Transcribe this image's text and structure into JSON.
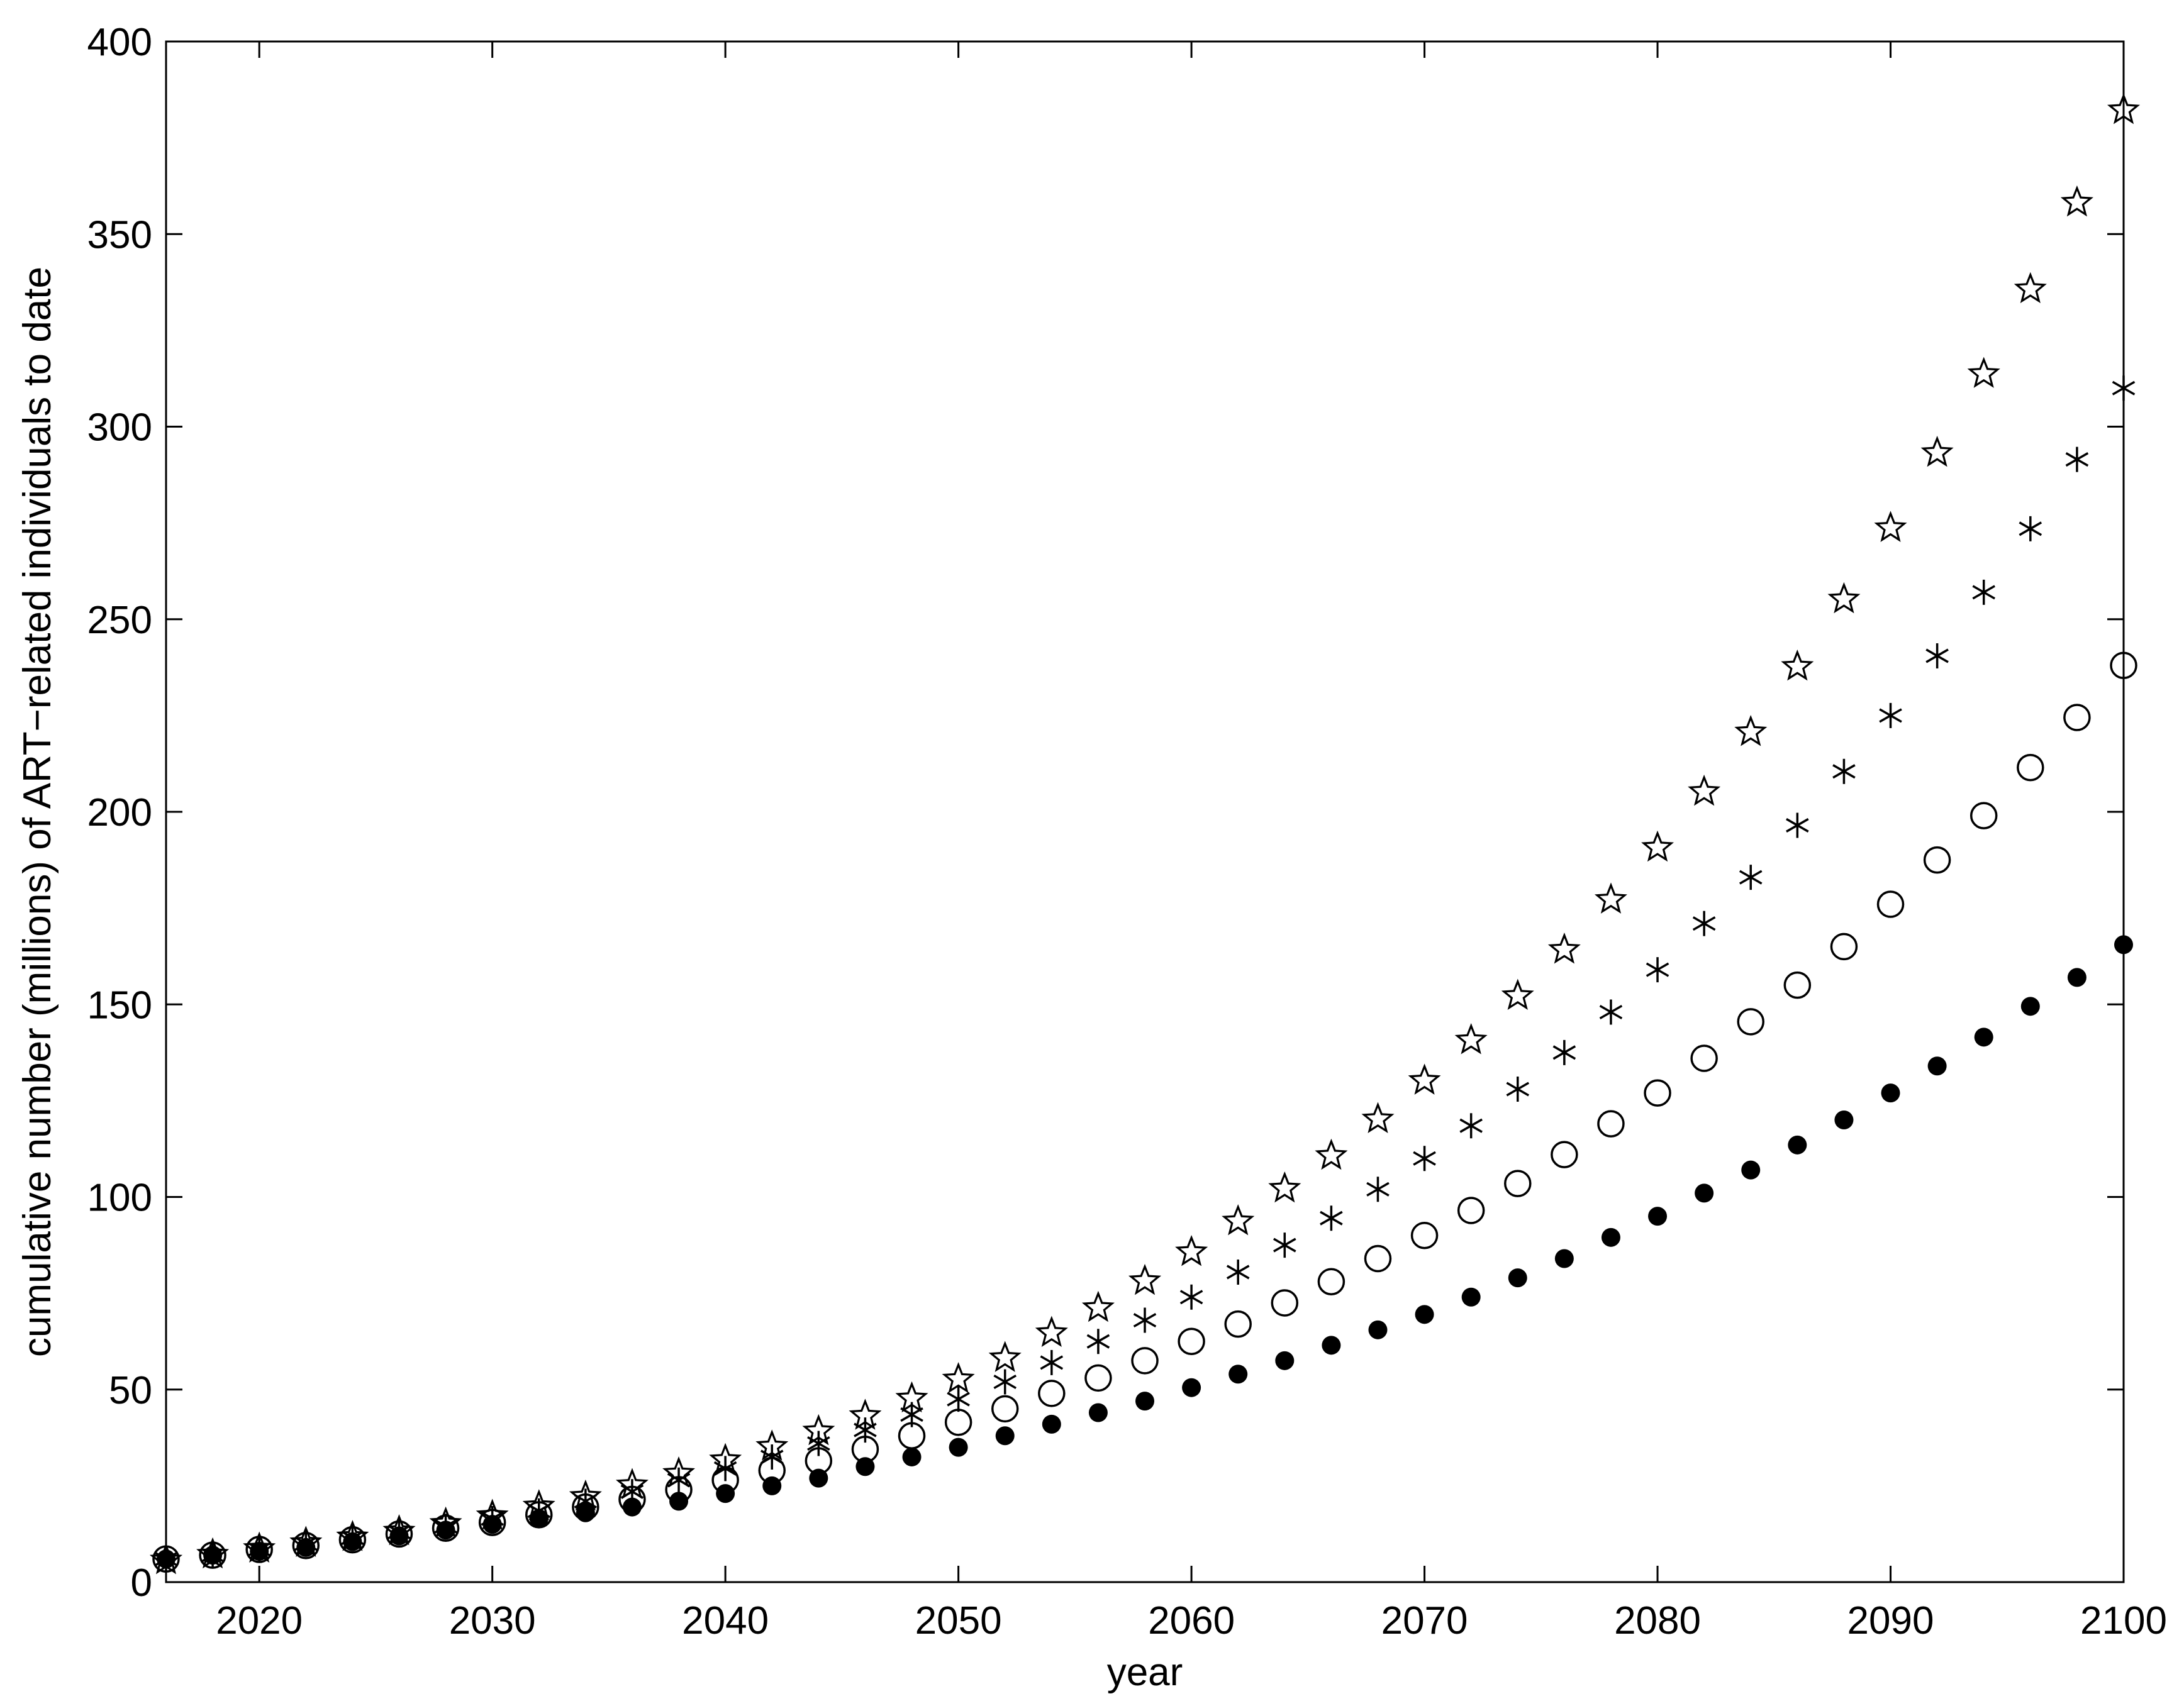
{
  "chart_data": {
    "type": "scatter",
    "title": "",
    "xlabel": "year",
    "ylabel": "cumulative number (millions) of ART−related individuals to date",
    "xlim": [
      2016,
      2100
    ],
    "ylim": [
      0,
      400
    ],
    "x_ticks": [
      2020,
      2030,
      2040,
      2050,
      2060,
      2070,
      2080,
      2090,
      2100
    ],
    "y_ticks": [
      0,
      50,
      100,
      150,
      200,
      250,
      300,
      350,
      400
    ],
    "grid": false,
    "legend": "none",
    "x": [
      2016,
      2018,
      2020,
      2022,
      2024,
      2026,
      2028,
      2030,
      2032,
      2034,
      2036,
      2038,
      2040,
      2042,
      2044,
      2046,
      2048,
      2050,
      2052,
      2054,
      2056,
      2058,
      2060,
      2062,
      2064,
      2066,
      2068,
      2070,
      2072,
      2074,
      2076,
      2078,
      2080,
      2082,
      2084,
      2086,
      2088,
      2090,
      2092,
      2094,
      2096,
      2098,
      2100
    ],
    "series": [
      {
        "marker": "star",
        "values": [
          6.0,
          7.5,
          9.0,
          10.5,
          12.0,
          13.5,
          15.5,
          17.5,
          20.0,
          22.5,
          25.5,
          28.5,
          32.0,
          35.5,
          39.5,
          43.5,
          48.0,
          53.0,
          58.5,
          65.0,
          71.5,
          78.5,
          86.0,
          94.0,
          102.5,
          111.0,
          120.5,
          130.5,
          141.0,
          152.5,
          164.5,
          177.5,
          191.0,
          205.5,
          221.0,
          238.0,
          255.5,
          274.0,
          293.5,
          314.0,
          336.0,
          358.5,
          382.5
        ]
      },
      {
        "marker": "asterisk",
        "values": [
          6.0,
          7.0,
          8.5,
          10.0,
          11.5,
          13.0,
          14.5,
          16.5,
          18.5,
          21.0,
          23.5,
          26.5,
          29.5,
          32.5,
          36.0,
          39.5,
          43.5,
          47.5,
          52.0,
          57.0,
          62.5,
          68.0,
          74.0,
          80.5,
          87.5,
          94.5,
          102.0,
          110.0,
          118.5,
          128.0,
          137.5,
          148.0,
          159.0,
          171.0,
          183.0,
          196.5,
          210.5,
          225.0,
          240.5,
          257.0,
          273.5,
          291.5,
          310.0
        ]
      },
      {
        "marker": "open-circle",
        "values": [
          6.0,
          7.0,
          8.5,
          9.5,
          11.0,
          12.5,
          14.0,
          15.5,
          17.5,
          19.5,
          21.5,
          24.0,
          26.5,
          29.0,
          31.5,
          34.5,
          38.0,
          41.5,
          45.0,
          49.0,
          53.0,
          57.5,
          62.5,
          67.0,
          72.5,
          78.0,
          84.0,
          90.0,
          96.5,
          103.5,
          111.0,
          119.0,
          127.0,
          136.0,
          145.5,
          155.0,
          165.0,
          176.0,
          187.5,
          199.0,
          211.5,
          224.5,
          238.0
        ]
      },
      {
        "marker": "filled-circle",
        "values": [
          6.0,
          7.0,
          8.0,
          9.0,
          10.5,
          12.0,
          13.5,
          15.0,
          16.5,
          18.0,
          19.5,
          21.0,
          23.0,
          25.0,
          27.0,
          30.0,
          32.5,
          35.0,
          38.0,
          41.0,
          44.0,
          47.0,
          50.5,
          54.0,
          57.5,
          61.5,
          65.5,
          69.5,
          74.0,
          79.0,
          84.0,
          89.5,
          95.0,
          101.0,
          107.0,
          113.5,
          120.0,
          127.0,
          134.0,
          141.5,
          149.5,
          157.0,
          165.5
        ]
      }
    ]
  }
}
